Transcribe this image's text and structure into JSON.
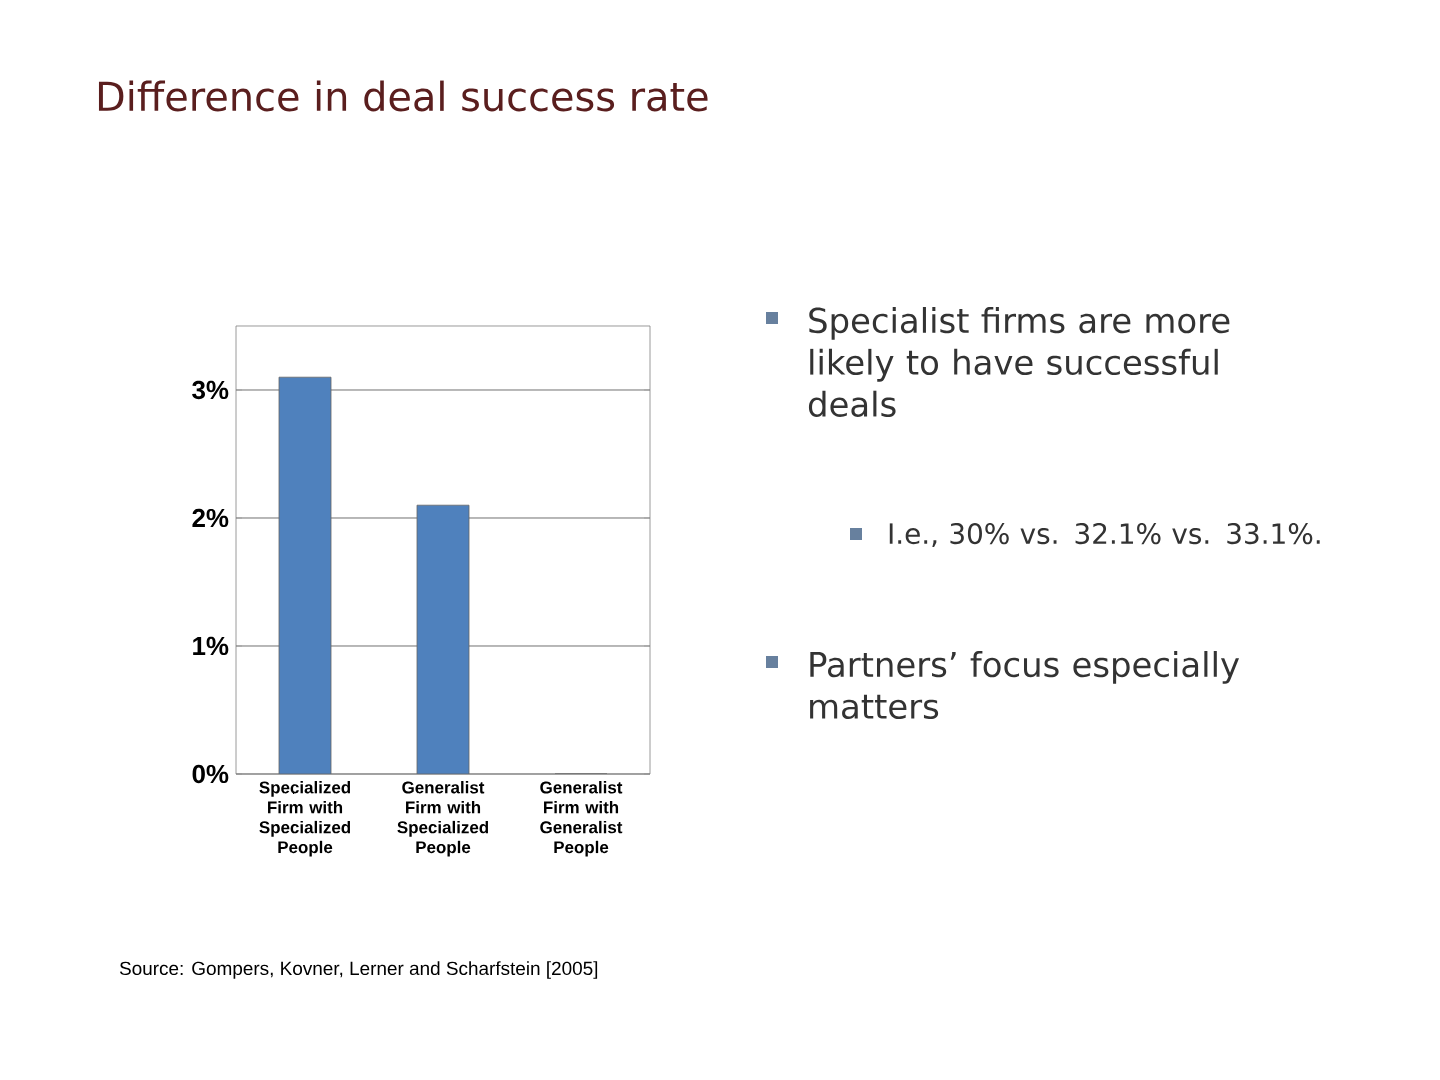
{
  "chart_data": {
    "type": "bar",
    "title": "Difference in deal success rate",
    "categories": [
      "Specialized Firm with Specialized People",
      "Generalist Firm with Specialized People",
      "Generalist Firm with Generalist People"
    ],
    "values": [
      3.1,
      2.1,
      0
    ],
    "color": "#4f81bd",
    "ylim": [
      0,
      3.5
    ],
    "yticks": [
      {
        "value": 0,
        "label": "0%"
      },
      {
        "value": 1,
        "label": "1%"
      },
      {
        "value": 2,
        "label": "2%"
      },
      {
        "value": 3,
        "label": "3%"
      }
    ],
    "grid": "y",
    "annotations": [
      "Specialist firms are more likely to have successful deals",
      "I.e., 30% vs. 32.1% vs. 33.1%.",
      "Partners’ focus especially matters",
      "Source: Gompers, Kovner, Lerner and Scharfstein [2005]"
    ]
  }
}
